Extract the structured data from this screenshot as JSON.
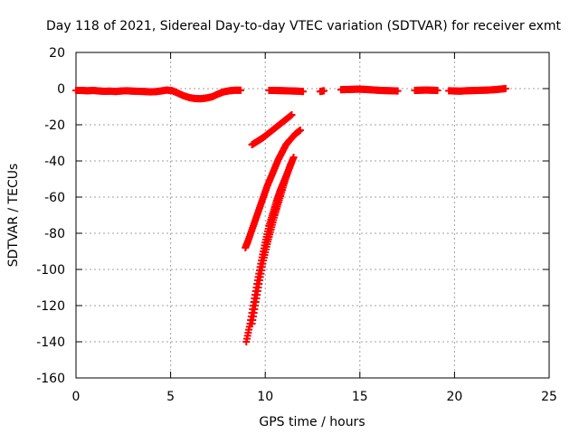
{
  "chart_data": {
    "type": "scatter",
    "title": "Day 118 of 2021, Sidereal Day-to-day VTEC variation (SDTVAR) for receiver exmt",
    "xlabel": "GPS time / hours",
    "ylabel": "SDTVAR / TECUs",
    "xlim": [
      0,
      25
    ],
    "ylim": [
      -160,
      20
    ],
    "xticks": [
      0,
      5,
      10,
      15,
      20,
      25
    ],
    "yticks": [
      20,
      0,
      -20,
      -40,
      -60,
      -80,
      -100,
      -120,
      -140,
      -160
    ],
    "grid": true,
    "marker": "plus",
    "color": "#ff0000",
    "series": [
      {
        "points": [
          [
            0.0,
            -1.0
          ],
          [
            0.3,
            -1.0
          ],
          [
            0.6,
            -1.2
          ],
          [
            0.9,
            -1.0
          ],
          [
            1.2,
            -1.3
          ],
          [
            1.5,
            -1.5
          ],
          [
            1.8,
            -1.4
          ],
          [
            2.1,
            -1.6
          ],
          [
            2.4,
            -1.3
          ],
          [
            2.7,
            -1.2
          ],
          [
            3.0,
            -1.4
          ],
          [
            3.3,
            -1.5
          ],
          [
            3.6,
            -1.6
          ],
          [
            3.9,
            -1.8
          ],
          [
            4.2,
            -1.7
          ],
          [
            4.5,
            -1.3
          ],
          [
            4.8,
            -0.8
          ],
          [
            5.1,
            -1.2
          ],
          [
            5.4,
            -2.6
          ],
          [
            5.7,
            -4.0
          ],
          [
            6.0,
            -5.0
          ],
          [
            6.3,
            -5.5
          ],
          [
            6.6,
            -5.6
          ],
          [
            6.9,
            -5.2
          ],
          [
            7.2,
            -4.5
          ],
          [
            7.5,
            -3.0
          ],
          [
            7.8,
            -1.8
          ],
          [
            8.1,
            -1.2
          ],
          [
            8.4,
            -0.9
          ],
          [
            8.7,
            -0.9
          ],
          [
            10.2,
            -1.0
          ],
          [
            10.5,
            -1.0
          ],
          [
            10.8,
            -1.1
          ],
          [
            11.1,
            -1.2
          ],
          [
            11.4,
            -1.3
          ],
          [
            11.7,
            -1.4
          ],
          [
            12.0,
            -1.6
          ],
          [
            12.9,
            -1.6
          ],
          [
            13.1,
            -1.2
          ],
          [
            14.0,
            -0.6
          ],
          [
            14.3,
            -0.5
          ],
          [
            14.6,
            -0.4
          ],
          [
            14.9,
            -0.3
          ],
          [
            15.2,
            -0.4
          ],
          [
            15.5,
            -0.6
          ],
          [
            15.8,
            -0.8
          ],
          [
            16.1,
            -1.0
          ],
          [
            16.4,
            -1.1
          ],
          [
            16.7,
            -1.2
          ],
          [
            17.0,
            -1.3
          ],
          [
            17.9,
            -1.0
          ],
          [
            18.2,
            -0.9
          ],
          [
            18.5,
            -0.8
          ],
          [
            18.8,
            -0.9
          ],
          [
            19.1,
            -1.0
          ],
          [
            19.7,
            -1.2
          ],
          [
            20.0,
            -1.3
          ],
          [
            20.3,
            -1.4
          ],
          [
            20.6,
            -1.2
          ],
          [
            20.9,
            -1.1
          ],
          [
            21.2,
            -1.0
          ],
          [
            21.5,
            -0.9
          ],
          [
            21.8,
            -0.8
          ],
          [
            22.1,
            -0.6
          ],
          [
            22.4,
            -0.3
          ],
          [
            22.7,
            0.0
          ]
        ]
      },
      {
        "points": [
          [
            9.3,
            -31
          ],
          [
            9.6,
            -29
          ],
          [
            9.9,
            -27
          ],
          [
            10.2,
            -24.5
          ],
          [
            10.5,
            -22
          ],
          [
            10.8,
            -19.5
          ],
          [
            11.1,
            -17
          ],
          [
            11.4,
            -14.5
          ]
        ]
      },
      {
        "points": [
          [
            8.95,
            -88
          ],
          [
            9.1,
            -84
          ],
          [
            9.3,
            -78
          ],
          [
            9.5,
            -72
          ],
          [
            9.7,
            -66
          ],
          [
            9.9,
            -60
          ],
          [
            10.1,
            -54
          ],
          [
            10.3,
            -49
          ],
          [
            10.5,
            -44
          ],
          [
            10.7,
            -39
          ],
          [
            10.9,
            -35
          ],
          [
            11.1,
            -31
          ],
          [
            11.3,
            -28.5
          ],
          [
            11.6,
            -25
          ],
          [
            11.85,
            -23
          ]
        ]
      },
      {
        "points": [
          [
            9.0,
            -140
          ],
          [
            9.2,
            -130
          ],
          [
            9.4,
            -118
          ],
          [
            9.6,
            -106
          ],
          [
            9.8,
            -95
          ],
          [
            10.0,
            -85
          ],
          [
            10.2,
            -76
          ],
          [
            10.4,
            -69
          ],
          [
            10.6,
            -62
          ],
          [
            10.8,
            -56
          ],
          [
            11.0,
            -51
          ],
          [
            11.2,
            -46
          ],
          [
            11.4,
            -40.5
          ]
        ]
      },
      {
        "points": [
          [
            9.3,
            -130
          ],
          [
            9.5,
            -118
          ],
          [
            9.7,
            -106
          ],
          [
            9.9,
            -95
          ],
          [
            10.1,
            -86
          ],
          [
            10.3,
            -78
          ],
          [
            10.5,
            -70
          ],
          [
            10.7,
            -63
          ],
          [
            10.9,
            -56
          ],
          [
            11.1,
            -49
          ],
          [
            11.3,
            -43
          ],
          [
            11.5,
            -38
          ]
        ]
      }
    ]
  }
}
